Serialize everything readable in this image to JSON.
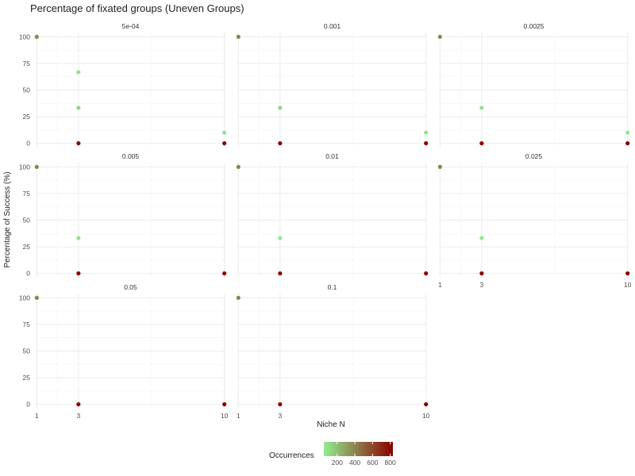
{
  "chart_data": {
    "type": "scatter",
    "title": "Percentage of fixated groups (Uneven Groups)",
    "xlabel": "Niche N",
    "ylabel": "Percentage of Success (%)",
    "x_ticks": [
      1,
      3,
      10
    ],
    "y_ticks": [
      0,
      25,
      50,
      75,
      100
    ],
    "xlim": [
      0.95,
      10.05
    ],
    "ylim": [
      -4,
      104
    ],
    "legend": {
      "title": "Occurrences",
      "ticks": [
        200,
        400,
        600,
        800
      ],
      "range": [
        50,
        830
      ],
      "low_color": "#90ee90",
      "high_color": "#8b0000",
      "position": "bottom"
    },
    "facets": [
      {
        "label": "5e-04",
        "points": [
          {
            "x": 1,
            "y": 100,
            "count": 400
          },
          {
            "x": 3,
            "y": 66.7,
            "count": 80
          },
          {
            "x": 3,
            "y": 33.3,
            "count": 120
          },
          {
            "x": 3,
            "y": 0,
            "count": 800
          },
          {
            "x": 10,
            "y": 10,
            "count": 90
          },
          {
            "x": 10,
            "y": 0,
            "count": 810
          }
        ]
      },
      {
        "label": "0.001",
        "points": [
          {
            "x": 1,
            "y": 100,
            "count": 400
          },
          {
            "x": 3,
            "y": 33.3,
            "count": 120
          },
          {
            "x": 3,
            "y": 0,
            "count": 800
          },
          {
            "x": 10,
            "y": 10,
            "count": 80
          },
          {
            "x": 10,
            "y": 0,
            "count": 800
          }
        ]
      },
      {
        "label": "0.0025",
        "points": [
          {
            "x": 1,
            "y": 100,
            "count": 400
          },
          {
            "x": 3,
            "y": 33.3,
            "count": 90
          },
          {
            "x": 3,
            "y": 0,
            "count": 810
          },
          {
            "x": 10,
            "y": 10,
            "count": 70
          },
          {
            "x": 10,
            "y": 0,
            "count": 820
          }
        ]
      },
      {
        "label": "0.005",
        "points": [
          {
            "x": 1,
            "y": 100,
            "count": 400
          },
          {
            "x": 3,
            "y": 33.3,
            "count": 80
          },
          {
            "x": 3,
            "y": 0,
            "count": 800
          },
          {
            "x": 10,
            "y": 0,
            "count": 820
          }
        ]
      },
      {
        "label": "0.01",
        "points": [
          {
            "x": 1,
            "y": 100,
            "count": 400
          },
          {
            "x": 3,
            "y": 33.3,
            "count": 70
          },
          {
            "x": 3,
            "y": 0,
            "count": 810
          },
          {
            "x": 10,
            "y": 0,
            "count": 820
          }
        ]
      },
      {
        "label": "0.025",
        "points": [
          {
            "x": 1,
            "y": 100,
            "count": 400
          },
          {
            "x": 3,
            "y": 33.3,
            "count": 70
          },
          {
            "x": 3,
            "y": 0,
            "count": 810
          },
          {
            "x": 10,
            "y": 0,
            "count": 830
          }
        ]
      },
      {
        "label": "0.05",
        "points": [
          {
            "x": 1,
            "y": 100,
            "count": 400
          },
          {
            "x": 3,
            "y": 0,
            "count": 820
          },
          {
            "x": 10,
            "y": 0,
            "count": 830
          }
        ]
      },
      {
        "label": "0.1",
        "points": [
          {
            "x": 1,
            "y": 100,
            "count": 400
          },
          {
            "x": 3,
            "y": 0,
            "count": 820
          },
          {
            "x": 10,
            "y": 0,
            "count": 830
          }
        ]
      }
    ]
  }
}
